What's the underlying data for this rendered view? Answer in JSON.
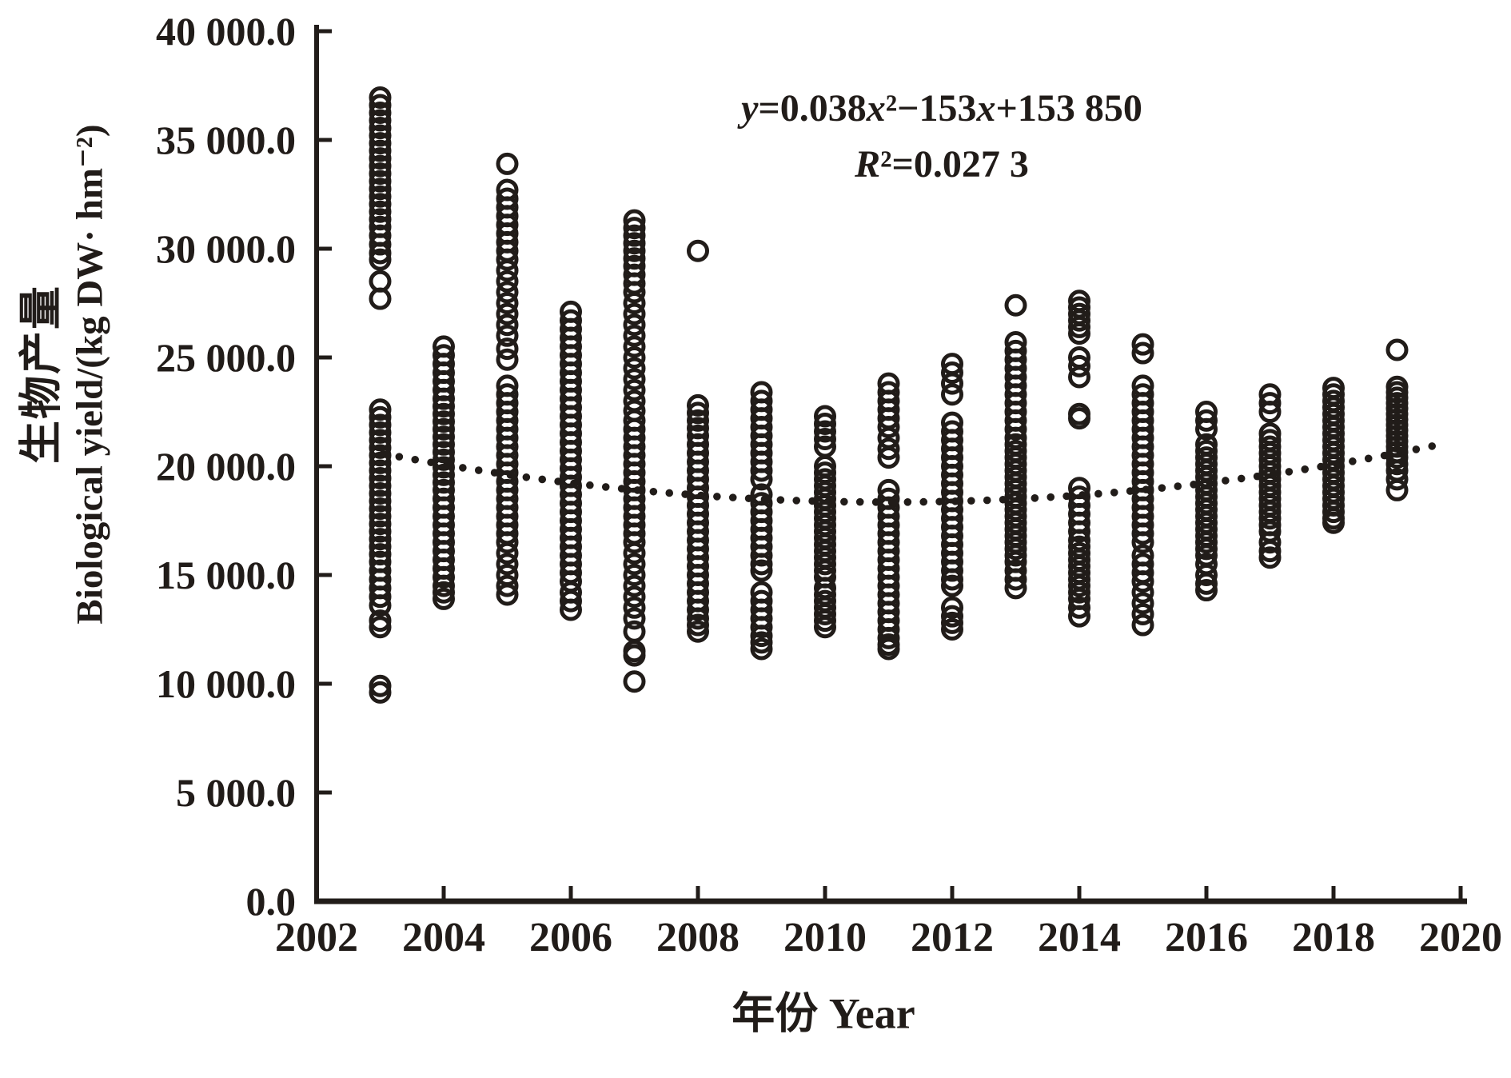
{
  "figure": {
    "background": "#ffffff",
    "ink_color": "#211c19"
  },
  "labels": {
    "y_axis_title_zh": "生物产量",
    "y_axis_title_en": "Biological yield/(kg DW· hm⁻²)",
    "x_axis_title": "年份 Year",
    "equation_line1": "y=0.038x²−153x+153 850",
    "equation_line2": "R²=0.027 3"
  },
  "chart_data": {
    "type": "scatter",
    "title": "",
    "xlabel": "年份 Year",
    "ylabel": "生物产量 Biological yield/(kg DW· hm⁻²)",
    "xlim": [
      2002,
      2020
    ],
    "ylim": [
      0,
      40000
    ],
    "grid": false,
    "x_ticks": [
      2004,
      2006,
      2008,
      2010,
      2012,
      2014,
      2016,
      2018,
      2020
    ],
    "x_tick_labels": [
      "2002",
      "2004",
      "2006",
      "2008",
      "2010",
      "2012",
      "2014",
      "2016",
      "2018",
      "2020"
    ],
    "x_tick_label_years": [
      2002,
      2004,
      2006,
      2008,
      2010,
      2012,
      2014,
      2016,
      2018,
      2020
    ],
    "y_ticks": [
      0,
      5000,
      10000,
      15000,
      20000,
      25000,
      30000,
      35000,
      40000
    ],
    "y_tick_labels": [
      "0.0",
      "5 000.0",
      "10 000.0",
      "15 000.0",
      "20 000.0",
      "25 000.0",
      "30 000.0",
      "35 000.0",
      "40 000.0"
    ],
    "marker": {
      "shape": "open-circle",
      "radius_px": 11.5,
      "stroke_px": 5
    },
    "annotation": {
      "line1": "y=0.038x²−153x+153 850",
      "line2": "R²=0.027 3",
      "position": "top-right"
    },
    "trendline": {
      "style": "dotted",
      "shape": "quadratic",
      "vertex_year": 2011,
      "vertex_value": 18350,
      "coefficient": 35.2,
      "year_start": 2003.05,
      "year_end": 2019.6,
      "dot_step_years": 0.25,
      "dot_radius_px": 4.8
    },
    "series": [
      {
        "name": "biological-yield-observations",
        "points_by_year": {
          "2003": [
            36950,
            36600,
            36250,
            35900,
            35550,
            35200,
            34850,
            34500,
            34150,
            33800,
            33450,
            33100,
            32750,
            32400,
            32050,
            31700,
            31350,
            31000,
            30600,
            30200,
            29800,
            29500,
            28500,
            27700,
            22600,
            22250,
            21900,
            21550,
            21200,
            20850,
            20500,
            20150,
            19800,
            19450,
            19100,
            18750,
            18400,
            18050,
            17700,
            17350,
            17000,
            16650,
            16300,
            15950,
            15600,
            15200,
            14800,
            14400,
            14000,
            13600,
            12900,
            12600,
            9900,
            9600
          ],
          "2004": [
            25500,
            25100,
            24700,
            24300,
            23900,
            23500,
            23100,
            22750,
            22400,
            22050,
            21700,
            21350,
            21000,
            20650,
            20300,
            19950,
            19600,
            19250,
            18900,
            18500,
            18100,
            17700,
            17300,
            16900,
            16500,
            16100,
            15700,
            15300,
            14900,
            14500,
            14200,
            13900
          ],
          "2005": [
            33900,
            32700,
            32300,
            31900,
            31500,
            31100,
            30700,
            30300,
            29900,
            29500,
            29000,
            28500,
            28000,
            27500,
            27000,
            26500,
            26000,
            25400,
            24900,
            23700,
            23300,
            22900,
            22500,
            22100,
            21700,
            21300,
            20900,
            20500,
            20100,
            19700,
            19300,
            18900,
            18500,
            18100,
            17700,
            17300,
            16900,
            16500,
            16000,
            15500,
            15000,
            14500,
            14100
          ],
          "2006": [
            27100,
            26700,
            26300,
            25900,
            25500,
            25100,
            24700,
            24300,
            23900,
            23500,
            23100,
            22700,
            22300,
            21900,
            21500,
            21100,
            20700,
            20300,
            19900,
            19500,
            19100,
            18700,
            18300,
            17900,
            17500,
            17100,
            16700,
            16300,
            15900,
            15500,
            15100,
            14700,
            14200,
            13800,
            13400
          ],
          "2007": [
            31300,
            30950,
            30600,
            30250,
            29900,
            29550,
            29200,
            28800,
            28400,
            28000,
            27500,
            27000,
            26500,
            26000,
            25500,
            25000,
            24500,
            24000,
            23500,
            23000,
            22550,
            22100,
            21700,
            21300,
            20900,
            20500,
            20100,
            19700,
            19300,
            18900,
            18500,
            18100,
            17700,
            17300,
            16900,
            16500,
            16000,
            15500,
            15000,
            14500,
            14000,
            13500,
            13000,
            12400,
            11500,
            11300,
            10100
          ],
          "2008": [
            29900,
            22800,
            22450,
            22100,
            21750,
            21400,
            21000,
            20600,
            20200,
            19800,
            19400,
            19000,
            18600,
            18200,
            17800,
            17400,
            17000,
            16600,
            16200,
            15800,
            15400,
            15000,
            14600,
            14200,
            13800,
            13400,
            13000,
            12700,
            12400
          ],
          "2009": [
            23400,
            23000,
            22600,
            22200,
            21800,
            21400,
            21000,
            20600,
            20200,
            19800,
            19400,
            18700,
            18300,
            17900,
            17500,
            17100,
            16700,
            16300,
            15900,
            15500,
            15200,
            14200,
            13800,
            13400,
            13000,
            12600,
            12200,
            11900,
            11600
          ],
          "2010": [
            22300,
            21950,
            21600,
            21250,
            20900,
            20000,
            19700,
            19400,
            19100,
            18800,
            18500,
            18200,
            17900,
            17600,
            17300,
            17000,
            16700,
            16400,
            16100,
            15800,
            15500,
            15200,
            14900,
            14400,
            14100,
            13800,
            13500,
            13200,
            12900,
            12600
          ],
          "2011": [
            23800,
            23400,
            23000,
            22600,
            22200,
            21800,
            21300,
            20800,
            20400,
            18900,
            18500,
            18100,
            17700,
            17300,
            16900,
            16500,
            16100,
            15700,
            15300,
            14900,
            14500,
            14100,
            13700,
            13300,
            12900,
            12500,
            12100,
            11800,
            11600
          ],
          "2012": [
            24700,
            24300,
            23800,
            23300,
            22000,
            21600,
            21200,
            20800,
            20400,
            20000,
            19600,
            19200,
            18800,
            18400,
            18000,
            17600,
            17200,
            16800,
            16400,
            16000,
            15600,
            15200,
            14800,
            14500,
            13500,
            13100,
            12800,
            12500
          ],
          "2013": [
            27400,
            25700,
            25300,
            24900,
            24500,
            24100,
            23700,
            23300,
            22900,
            22500,
            22100,
            21700,
            21300,
            21000,
            20700,
            20400,
            20100,
            19800,
            19500,
            19200,
            18900,
            18600,
            18300,
            18000,
            17700,
            17400,
            17100,
            16800,
            16500,
            16200,
            15900,
            15600,
            15200,
            14800,
            14400
          ],
          "2014": [
            27600,
            27300,
            27000,
            26700,
            26400,
            26100,
            25000,
            24600,
            24100,
            22400,
            22200,
            19000,
            18600,
            18200,
            17800,
            17400,
            17000,
            16600,
            16300,
            16000,
            15700,
            15400,
            15100,
            14800,
            14500,
            14200,
            13900,
            13500,
            13100
          ],
          "2015": [
            25600,
            25200,
            23700,
            23300,
            22900,
            22500,
            22100,
            21700,
            21300,
            20900,
            20500,
            20100,
            19700,
            19300,
            18900,
            18500,
            18100,
            17700,
            17300,
            16900,
            16500,
            15900,
            15500,
            15100,
            14700,
            14200,
            13700,
            13200,
            12700
          ],
          "2016": [
            22500,
            22100,
            21700,
            21000,
            20700,
            20400,
            20100,
            19800,
            19500,
            19200,
            18900,
            18600,
            18300,
            18000,
            17700,
            17400,
            17100,
            16800,
            16500,
            16200,
            15900,
            15500,
            15000,
            14600,
            14300
          ],
          "2017": [
            23300,
            22900,
            22500,
            21500,
            21200,
            20900,
            20600,
            20300,
            20000,
            19700,
            19400,
            19100,
            18800,
            18500,
            18200,
            17900,
            17600,
            17300,
            17000,
            16500,
            16100,
            15800
          ],
          "2018": [
            23600,
            23300,
            23000,
            22700,
            22400,
            22100,
            21800,
            21500,
            21200,
            20900,
            20600,
            20300,
            20000,
            19700,
            19400,
            19100,
            18800,
            18500,
            18200,
            17900,
            17600,
            17400
          ],
          "2019": [
            25350,
            23650,
            23400,
            23150,
            22900,
            22650,
            22400,
            22150,
            21900,
            21650,
            21400,
            21150,
            20900,
            20650,
            20400,
            20100,
            19800,
            19400,
            18900
          ]
        }
      }
    ]
  }
}
